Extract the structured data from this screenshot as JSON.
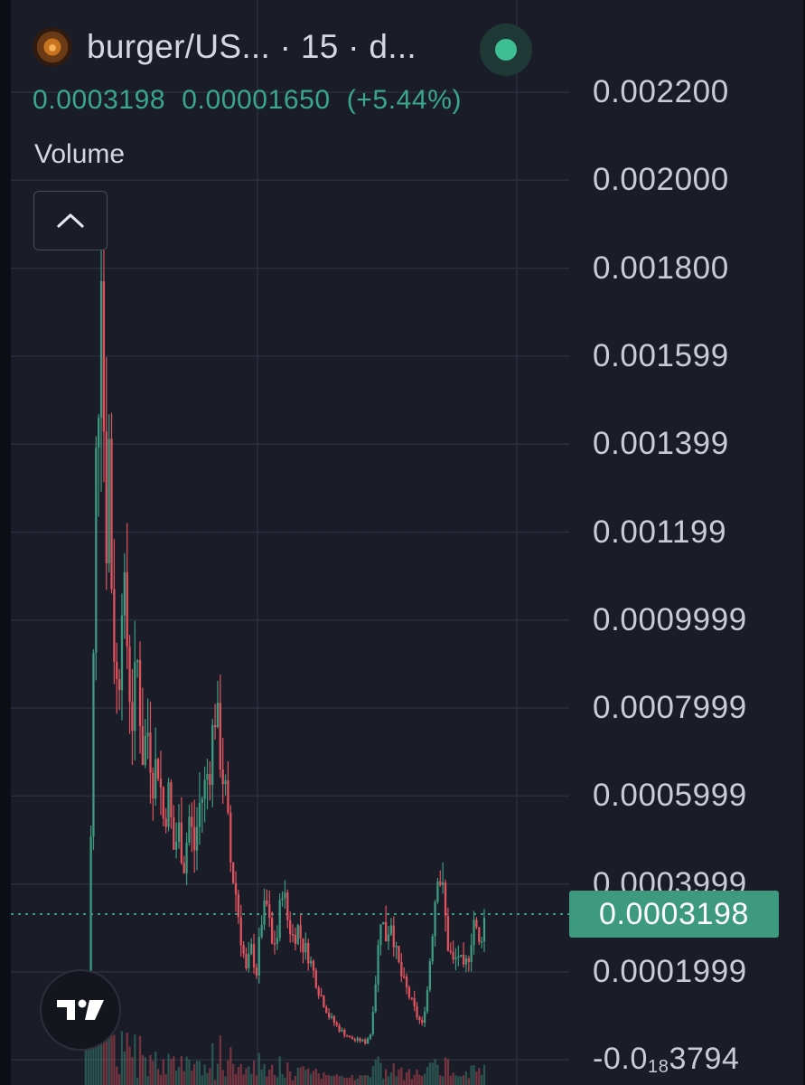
{
  "header": {
    "pair_title": "burger/US... · 15 · d...",
    "pair_icon": "burger-token-icon",
    "status": "live"
  },
  "legend": {
    "price": "0.0003198",
    "change_abs": "0.00001650",
    "change_pct": "(+5.44%)",
    "up_color": "#39a788"
  },
  "volume": {
    "label": "Volume",
    "collapse_icon": "chevron-up-icon"
  },
  "current_price_tag": "0.0003198",
  "branding": {
    "logo": "tradingview-logo-icon"
  },
  "colors": {
    "background": "#1a1d28",
    "up": "#3d9a7f",
    "down": "#e0535e",
    "grid": "#2b2f3c",
    "axis_text": "#c9ccd3"
  },
  "chart_data": {
    "type": "candlestick",
    "y_axis_ticks": [
      "0.002200",
      "0.002000",
      "0.001800",
      "0.001599",
      "0.001399",
      "0.001199",
      "0.0009999",
      "0.0007999",
      "0.0005999",
      "0.0003999",
      "0.0001999"
    ],
    "y_axis_last_tick": {
      "prefix": "-0.0",
      "sub": "18",
      "suffix": "3794"
    },
    "ylim": [
      0,
      0.0022
    ],
    "current_price": 0.0003198,
    "price_path": [
      [
        0,
        3e-05
      ],
      [
        2,
        0.00018
      ],
      [
        3,
        0.0005
      ],
      [
        4,
        0.0009
      ],
      [
        5,
        0.00135
      ],
      [
        6,
        0.00155
      ],
      [
        7,
        0.0019
      ],
      [
        8,
        0.00145
      ],
      [
        9,
        0.0012
      ],
      [
        10,
        0.0014
      ],
      [
        11,
        0.0011
      ],
      [
        12,
        0.00095
      ],
      [
        13,
        0.00085
      ],
      [
        14,
        0.0009
      ],
      [
        15,
        0.0011
      ],
      [
        17,
        0.00095
      ],
      [
        18,
        0.00085
      ],
      [
        19,
        0.00078
      ],
      [
        21,
        0.0009
      ],
      [
        23,
        0.0007
      ],
      [
        25,
        0.00075
      ],
      [
        27,
        0.00065
      ],
      [
        29,
        0.00068
      ],
      [
        31,
        0.00055
      ],
      [
        33,
        0.0006
      ],
      [
        35,
        0.00048
      ],
      [
        37,
        0.00052
      ],
      [
        39,
        0.00045
      ],
      [
        41,
        0.00055
      ],
      [
        43,
        0.00048
      ],
      [
        45,
        0.00058
      ],
      [
        47,
        0.00062
      ],
      [
        49,
        0.00068
      ],
      [
        51,
        0.0008
      ],
      [
        53,
        0.0007
      ],
      [
        55,
        0.0006
      ],
      [
        57,
        0.00045
      ],
      [
        59,
        0.00038
      ],
      [
        61,
        0.00028
      ],
      [
        63,
        0.0002
      ],
      [
        65,
        0.00025
      ],
      [
        67,
        0.0002
      ],
      [
        69,
        0.00032
      ],
      [
        71,
        0.00035
      ],
      [
        73,
        0.00026
      ],
      [
        75,
        0.00028
      ],
      [
        77,
        0.0004
      ],
      [
        79,
        0.00032
      ],
      [
        81,
        0.00028
      ],
      [
        83,
        0.0003
      ],
      [
        85,
        0.00026
      ],
      [
        87,
        0.00024
      ],
      [
        89,
        0.0002
      ],
      [
        91,
        0.00016
      ],
      [
        93,
        0.00013
      ],
      [
        95,
        0.0001
      ],
      [
        97,
        8.5e-05
      ],
      [
        99,
        7e-05
      ],
      [
        101,
        6e-05
      ],
      [
        103,
        5e-05
      ],
      [
        105,
        4.5e-05
      ],
      [
        107,
        4.5e-05
      ],
      [
        109,
        4e-05
      ],
      [
        111,
        6e-05
      ],
      [
        113,
        0.00018
      ],
      [
        115,
        0.00033
      ],
      [
        117,
        0.00028
      ],
      [
        119,
        0.00032
      ],
      [
        121,
        0.00024
      ],
      [
        123,
        0.00019
      ],
      [
        125,
        0.00016
      ],
      [
        127,
        0.00013
      ],
      [
        129,
        0.0001
      ],
      [
        131,
        8e-05
      ],
      [
        133,
        0.00016
      ],
      [
        135,
        0.0003
      ],
      [
        137,
        0.00044
      ],
      [
        139,
        0.00038
      ],
      [
        141,
        0.00026
      ],
      [
        143,
        0.00022
      ],
      [
        145,
        0.00024
      ],
      [
        147,
        0.0002
      ],
      [
        149,
        0.00024
      ],
      [
        151,
        0.00032
      ],
      [
        153,
        0.00026
      ],
      [
        155,
        0.0003198
      ]
    ]
  }
}
